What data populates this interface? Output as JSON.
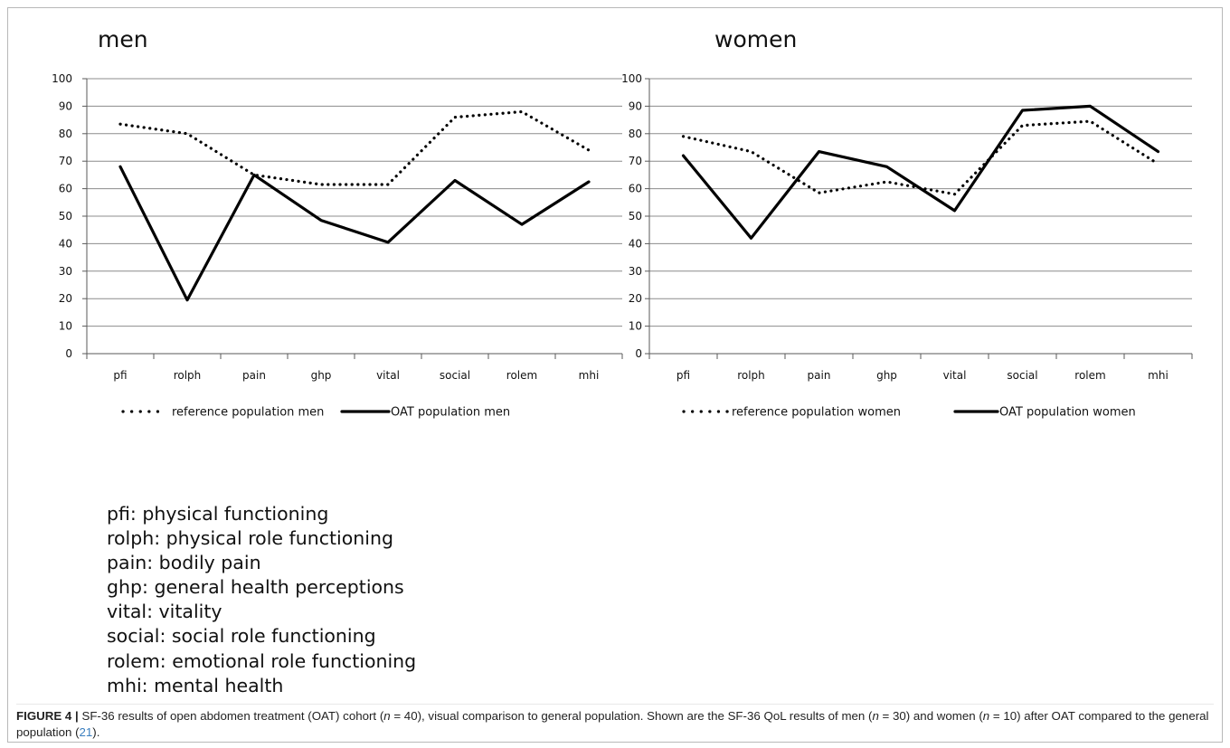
{
  "chart_data": [
    {
      "type": "line",
      "title": "men",
      "categories": [
        "pfi",
        "rolph",
        "pain",
        "ghp",
        "vital",
        "social",
        "rolem",
        "mhi"
      ],
      "ylim": [
        0,
        100
      ],
      "yticks": [
        0,
        10,
        20,
        30,
        40,
        50,
        60,
        70,
        80,
        90,
        100
      ],
      "grid": true,
      "legend_position": "bottom",
      "series": [
        {
          "name": "reference population men",
          "style": "dotted",
          "color": "#000000",
          "values": [
            83.5,
            80,
            65,
            61.5,
            61.5,
            86,
            88,
            74
          ]
        },
        {
          "name": "OAT population men",
          "style": "solid",
          "color": "#000000",
          "values": [
            68,
            19.5,
            65,
            48.5,
            40.5,
            63,
            47,
            62.5
          ]
        }
      ]
    },
    {
      "type": "line",
      "title": "women",
      "categories": [
        "pfi",
        "rolph",
        "pain",
        "ghp",
        "vital",
        "social",
        "rolem",
        "mhi"
      ],
      "ylim": [
        0,
        100
      ],
      "yticks": [
        0,
        10,
        20,
        30,
        40,
        50,
        60,
        70,
        80,
        90,
        100
      ],
      "grid": true,
      "legend_position": "bottom",
      "series": [
        {
          "name": "reference population women",
          "style": "dotted",
          "color": "#000000",
          "values": [
            79,
            73.5,
            58.5,
            62.5,
            58,
            83,
            84.5,
            69
          ]
        },
        {
          "name": "OAT population women",
          "style": "solid",
          "color": "#000000",
          "values": [
            72,
            42,
            73.5,
            68,
            52,
            88.5,
            90,
            73.5
          ]
        }
      ]
    }
  ],
  "abbreviations": [
    "pfi: physical functioning",
    "rolph: physical role functioning",
    "pain: bodily pain",
    "ghp: general health perceptions",
    "vital: vitality",
    "social: social role functioning",
    "rolem: emotional role functioning",
    "mhi: mental health"
  ],
  "caption": {
    "label": "FIGURE 4 |",
    "p1": " SF-36 results of open abdomen treatment (OAT) cohort (",
    "n1": "n",
    "p2": " = 40), visual comparison to general population. Shown are the SF-36 QoL results of men (",
    "n2": "n",
    "p3": " = 30) and women (",
    "n3": "n",
    "p4": " = 10) after OAT compared to the general population (",
    "ref": "21",
    "p5": ")."
  }
}
